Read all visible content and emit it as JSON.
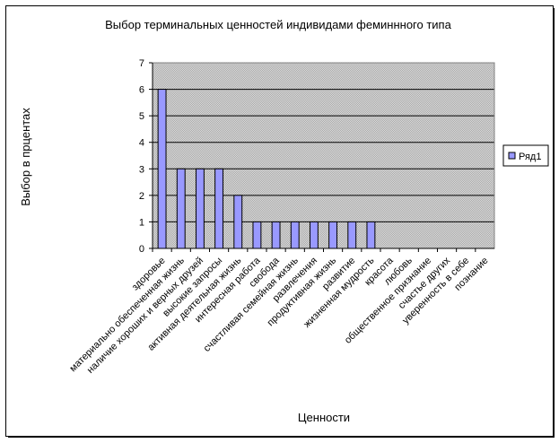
{
  "chart_data": {
    "type": "bar",
    "title": "Выбор терминальных ценностей индивидами феминнного типа",
    "xlabel": "Ценности",
    "ylabel": "Выбор в прцентах",
    "ylim": [
      0,
      7
    ],
    "yticks": [
      0,
      1,
      2,
      3,
      4,
      5,
      6,
      7
    ],
    "grid": true,
    "legend_position": "right",
    "categories": [
      "здоровье",
      "материально обеспеченная жизнь",
      "наличие хороших и верных друзей",
      "высокие запросы",
      "активная деятельная жизнь",
      "интересная работа",
      "свобода",
      "счастливая семейная жизнь",
      "развлечения",
      "продуктивная жизнь",
      "развитие",
      "жизненная мудрость",
      "красота",
      "любовь",
      "общественное признание",
      "счастье других",
      "уверенность в себе",
      "познание"
    ],
    "series": [
      {
        "name": "Ряд1",
        "color": "#9999ff",
        "values": [
          6,
          3,
          3,
          3,
          2,
          1,
          1,
          1,
          1,
          1,
          1,
          1,
          0,
          0,
          0,
          0,
          0,
          0
        ]
      }
    ]
  }
}
